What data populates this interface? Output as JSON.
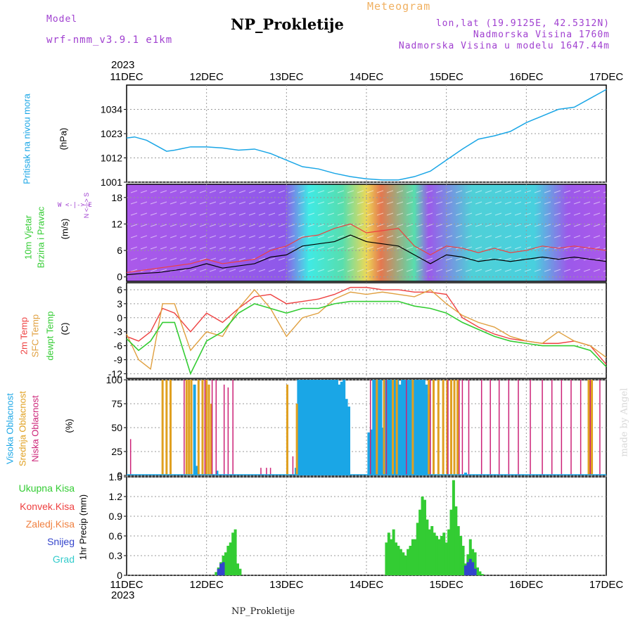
{
  "header": {
    "model_label": "Model",
    "model_name": "wrf-nmm_v3.9.1  e1km",
    "title": "NP_Prokletije",
    "subtitle": "Meteogram",
    "lonlat": "lon,lat (19.9125E, 42.5312N)",
    "altitude": "Nadmorska Visina 1760m",
    "model_altitude": "Nadmorska Visina u modelu 1647.44m",
    "year_top": "2023",
    "year_bottom": "2023",
    "footer_title": "NP_Prokletije",
    "credit": "made by Angel"
  },
  "colors": {
    "pressure": "#1aa6e6",
    "temp2m": "#ee4040",
    "sfc_temp": "#e0a040",
    "dewpt": "#33cc33",
    "cloud_high": "#1aa6e6",
    "cloud_mid": "#e0a020",
    "cloud_low": "#cc2277",
    "precip_total": "#33cc33",
    "precip_snow": "#3344cc",
    "purple": "#a040d0"
  },
  "chart_data": [
    {
      "type": "line",
      "name": "pressure",
      "xticks": [
        "11DEC",
        "12DEC",
        "13DEC",
        "14DEC",
        "15DEC",
        "16DEC",
        "17DEC"
      ],
      "ylabel_main": "Pritisak na nivou mora",
      "ylabel_unit": "(hPa)",
      "yticks": [
        1001,
        1012,
        1023,
        1034
      ],
      "ylim": [
        1001,
        1045
      ],
      "grid": true,
      "series": [
        {
          "x": [
            0,
            0.1,
            0.25,
            0.4,
            0.5,
            0.6,
            0.8,
            1.0,
            1.2,
            1.4,
            1.6,
            1.8,
            2.0,
            2.2,
            2.4,
            2.6,
            2.8,
            3.0,
            3.2,
            3.4,
            3.6,
            3.8,
            4.0,
            4.2,
            4.4,
            4.6,
            4.8,
            5.0,
            5.2,
            5.4,
            5.6,
            5.8,
            6.0
          ],
          "y": [
            1021,
            1021.5,
            1020,
            1017,
            1015,
            1015.5,
            1017,
            1017,
            1016.5,
            1015.5,
            1016,
            1014,
            1011,
            1008,
            1007,
            1005,
            1003.5,
            1002.5,
            1002,
            1002,
            1003.5,
            1006,
            1011,
            1016,
            1020.5,
            1022,
            1024,
            1028,
            1031,
            1034,
            1035,
            1039,
            1043
          ]
        }
      ]
    },
    {
      "type": "line",
      "name": "wind",
      "ylabel_main": "10m Vjetar",
      "ylabel_second": "Brzina i Pravac",
      "ylabel_unit": "(m/s)",
      "compass_text": "W <-|-> E",
      "compass_vertical": "N <-|-> S",
      "yticks": [
        0,
        6,
        12,
        18
      ],
      "ylim": [
        -1,
        21
      ],
      "series": [
        {
          "name": "",
          "x": [
            0,
            0.2,
            0.4,
            0.6,
            0.8,
            1.0,
            1.2,
            1.4,
            1.6,
            1.8,
            2.0,
            2.2,
            2.4,
            2.6,
            2.8,
            3.0,
            3.2,
            3.4,
            3.6,
            3.8,
            4.0,
            4.2,
            4.4,
            4.6,
            4.8,
            5.0,
            5.2,
            5.4,
            5.6,
            5.8,
            6.0
          ],
          "y": [
            1,
            1.5,
            2,
            2.5,
            3,
            4,
            3,
            3.5,
            4,
            6,
            7,
            9,
            9.5,
            11,
            12,
            10,
            10.5,
            11,
            7,
            5,
            7,
            6.5,
            5.5,
            6.5,
            5.5,
            6,
            7,
            6.5,
            7,
            6.5,
            6
          ]
        },
        {
          "name": "",
          "x": [
            0,
            0.2,
            0.4,
            0.6,
            0.8,
            1.0,
            1.2,
            1.4,
            1.6,
            1.8,
            2.0,
            2.2,
            2.4,
            2.6,
            2.8,
            3.0,
            3.2,
            3.4,
            3.6,
            3.8,
            4.0,
            4.2,
            4.4,
            4.6,
            4.8,
            5.0,
            5.2,
            5.4,
            5.6,
            5.8,
            6.0
          ],
          "y": [
            0.5,
            0.8,
            1,
            1.5,
            2,
            3,
            2,
            2.5,
            3,
            4.5,
            5,
            7,
            7.5,
            8,
            9.5,
            8,
            7.5,
            7,
            5,
            3,
            5,
            4.5,
            3.5,
            4,
            3.5,
            4,
            4.5,
            4,
            4.5,
            4,
            3.5
          ]
        }
      ]
    },
    {
      "type": "line",
      "name": "temperature",
      "ylabel_lines": [
        "2m Temp",
        "SFC Temp",
        "dewpt Temp"
      ],
      "ylabel_unit": "(C)",
      "yticks": [
        -12,
        -9,
        -6,
        -3,
        0,
        3,
        6
      ],
      "ylim": [
        -13,
        7.5
      ],
      "series": [
        {
          "name": "2m Temp",
          "x": [
            0,
            0.15,
            0.3,
            0.45,
            0.6,
            0.8,
            1.0,
            1.2,
            1.4,
            1.6,
            1.8,
            2.0,
            2.2,
            2.4,
            2.6,
            2.8,
            3.0,
            3.2,
            3.4,
            3.6,
            3.8,
            4.0,
            4.2,
            4.4,
            4.6,
            4.8,
            5.0,
            5.2,
            5.4,
            5.6,
            5.8,
            6.0
          ],
          "y": [
            -4,
            -5,
            -3,
            2,
            1,
            -3,
            1,
            -1,
            2,
            4.5,
            5,
            3,
            3.5,
            4,
            5,
            6.5,
            6.5,
            6,
            6,
            5.5,
            5.5,
            5,
            0,
            -2,
            -3.5,
            -4.5,
            -5,
            -5.5,
            -5.5,
            -5,
            -6,
            -10
          ]
        },
        {
          "name": "SFC Temp",
          "x": [
            0,
            0.15,
            0.3,
            0.45,
            0.6,
            0.8,
            1.0,
            1.2,
            1.4,
            1.6,
            1.8,
            2.0,
            2.2,
            2.4,
            2.6,
            2.8,
            3.0,
            3.2,
            3.4,
            3.6,
            3.8,
            4.0,
            4.2,
            4.4,
            4.6,
            4.8,
            5.0,
            5.2,
            5.4,
            5.6,
            5.8,
            6.0
          ],
          "y": [
            -3.5,
            -9,
            -11,
            3,
            3,
            -7,
            -3,
            -4,
            2,
            6,
            2,
            -4,
            0,
            1,
            4,
            5.5,
            5,
            5.5,
            5,
            4.5,
            6,
            3,
            0.5,
            -1,
            -2,
            -4,
            -5,
            -5.5,
            -3,
            -5,
            -6,
            -8.5
          ]
        },
        {
          "name": "dewpt Temp",
          "x": [
            0,
            0.15,
            0.3,
            0.45,
            0.6,
            0.8,
            1.0,
            1.2,
            1.4,
            1.6,
            1.8,
            2.0,
            2.2,
            2.4,
            2.6,
            2.8,
            3.0,
            3.2,
            3.4,
            3.6,
            3.8,
            4.0,
            4.2,
            4.4,
            4.6,
            4.8,
            5.0,
            5.2,
            5.4,
            5.6,
            5.8,
            6.0
          ],
          "y": [
            -4.5,
            -7,
            -5,
            -1,
            -1,
            -12,
            -5,
            -3,
            1,
            3,
            2,
            1,
            2,
            2,
            3,
            3.5,
            3.5,
            3.5,
            3.5,
            2.5,
            2,
            1,
            -1,
            -2.5,
            -4,
            -5,
            -5.5,
            -6,
            -6,
            -6,
            -7,
            -10.5
          ]
        }
      ]
    },
    {
      "type": "bar",
      "name": "clouds",
      "ylabel_lines": [
        "Visoka Oblacnost",
        "Srednja Oblacnost",
        "Niska Oblacnost"
      ],
      "ylabel_unit": "(%)",
      "yticks": [
        0,
        25,
        50,
        75,
        100
      ],
      "ylim": [
        0,
        100
      ],
      "series": [
        {
          "name": "Visoka Oblacnost",
          "x": [
            0.85,
            0.88,
            1.13,
            2.12,
            2.15,
            2.18,
            2.21,
            2.24,
            2.27,
            2.3,
            2.33,
            2.36,
            2.39,
            2.42,
            2.45,
            2.48,
            2.51,
            2.54,
            2.57,
            2.6,
            2.63,
            2.66,
            2.69,
            2.72,
            2.75,
            2.78,
            3.03,
            3.06,
            3.09,
            3.12,
            3.15,
            3.18,
            3.21,
            3.24,
            3.27,
            3.3,
            3.33,
            3.36,
            3.39,
            3.42,
            3.45,
            3.48,
            3.51,
            3.54,
            3.57,
            3.6,
            3.63,
            3.66,
            3.69,
            3.72,
            3.75,
            3.78,
            4.24
          ],
          "values": [
            95,
            10,
            5,
            8,
            100,
            100,
            100,
            100,
            100,
            100,
            100,
            100,
            100,
            100,
            100,
            100,
            100,
            100,
            100,
            100,
            100,
            95,
            98,
            100,
            80,
            72,
            45,
            48,
            100,
            100,
            100,
            100,
            50,
            100,
            100,
            100,
            100,
            100,
            100,
            95,
            100,
            100,
            100,
            100,
            100,
            100,
            100,
            100,
            100,
            100,
            95,
            85,
            3
          ]
        },
        {
          "name": "Srednja Oblacnost",
          "x": [
            0.45,
            0.5,
            0.55,
            0.75,
            0.78,
            0.81,
            0.9,
            0.95,
            1.0,
            1.03,
            1.06,
            2.01,
            2.13,
            3.13,
            3.22,
            3.33,
            3.38,
            3.58,
            3.78,
            3.84,
            3.9,
            3.96,
            4.01,
            4.06,
            4.1,
            4.14,
            5.78,
            5.82
          ],
          "values": [
            100,
            100,
            100,
            100,
            100,
            100,
            100,
            100,
            100,
            95,
            75,
            95,
            75,
            100,
            100,
            100,
            100,
            100,
            100,
            100,
            100,
            100,
            100,
            100,
            100,
            100,
            100,
            100
          ]
        },
        {
          "name": "Niska Oblacnost",
          "x": [
            0.05,
            0.72,
            0.98,
            1.07,
            1.12,
            1.22,
            1.27,
            1.33,
            1.68,
            1.75,
            1.8,
            2.08,
            3.05,
            3.25,
            3.5,
            3.8,
            4.02,
            4.16,
            4.2,
            4.28,
            4.44,
            4.55,
            4.66,
            4.78,
            4.9,
            5.05,
            5.2,
            5.32,
            5.44,
            5.56,
            5.68,
            5.8,
            5.92
          ],
          "values": [
            38,
            100,
            100,
            100,
            100,
            95,
            92,
            100,
            8,
            8,
            8,
            20,
            100,
            100,
            100,
            100,
            100,
            100,
            100,
            100,
            100,
            100,
            100,
            100,
            100,
            100,
            100,
            100,
            100,
            100,
            100,
            100,
            100
          ]
        }
      ]
    },
    {
      "type": "bar",
      "name": "precipitation",
      "left_legend": [
        "Ukupna Kisa",
        "Konvek.Kisa",
        "Zaledj.Kisa",
        "Snijeg",
        "Grad"
      ],
      "ylabel_unit": "1hr Precip (mm)",
      "yticks": [
        0,
        0.3,
        0.6,
        0.9,
        1.2,
        1.5
      ],
      "ylim": [
        0,
        1.5
      ],
      "xticks": [
        "11DEC",
        "12DEC",
        "13DEC",
        "14DEC",
        "15DEC",
        "16DEC",
        "17DEC"
      ],
      "series": [
        {
          "name": "Ukupna Kisa",
          "x": [
            1.12,
            1.15,
            1.18,
            1.21,
            1.24,
            1.27,
            1.3,
            1.33,
            1.36,
            1.39,
            1.42,
            3.25,
            3.28,
            3.31,
            3.34,
            3.37,
            3.4,
            3.43,
            3.46,
            3.49,
            3.52,
            3.55,
            3.58,
            3.61,
            3.64,
            3.67,
            3.7,
            3.73,
            3.76,
            3.79,
            3.82,
            3.85,
            3.88,
            3.91,
            3.94,
            3.97,
            4.0,
            4.03,
            4.06,
            4.09,
            4.12,
            4.15,
            4.18,
            4.21,
            4.24,
            4.27,
            4.3,
            4.33,
            4.36,
            4.39,
            4.42,
            4.45
          ],
          "values": [
            0.05,
            0.12,
            0.2,
            0.3,
            0.35,
            0.45,
            0.5,
            0.65,
            0.7,
            0.18,
            0.1,
            0.5,
            0.65,
            0.55,
            0.7,
            0.5,
            0.45,
            0.4,
            0.35,
            0.3,
            0.4,
            0.45,
            0.55,
            0.55,
            0.8,
            1.0,
            1.2,
            1.15,
            0.85,
            0.7,
            0.75,
            0.65,
            0.6,
            0.55,
            0.6,
            0.65,
            0.5,
            0.7,
            1.0,
            1.45,
            1.05,
            0.75,
            0.6,
            0.45,
            0.18,
            0.32,
            0.55,
            0.4,
            0.35,
            0.12,
            0.06,
            0.02
          ]
        },
        {
          "name": "Snijeg",
          "x": [
            1.15,
            1.18,
            1.21,
            4.24,
            4.27,
            4.3,
            4.33,
            4.36
          ],
          "values": [
            0.1,
            0.18,
            0.2,
            0.15,
            0.2,
            0.25,
            0.2,
            0.1
          ]
        }
      ]
    }
  ]
}
